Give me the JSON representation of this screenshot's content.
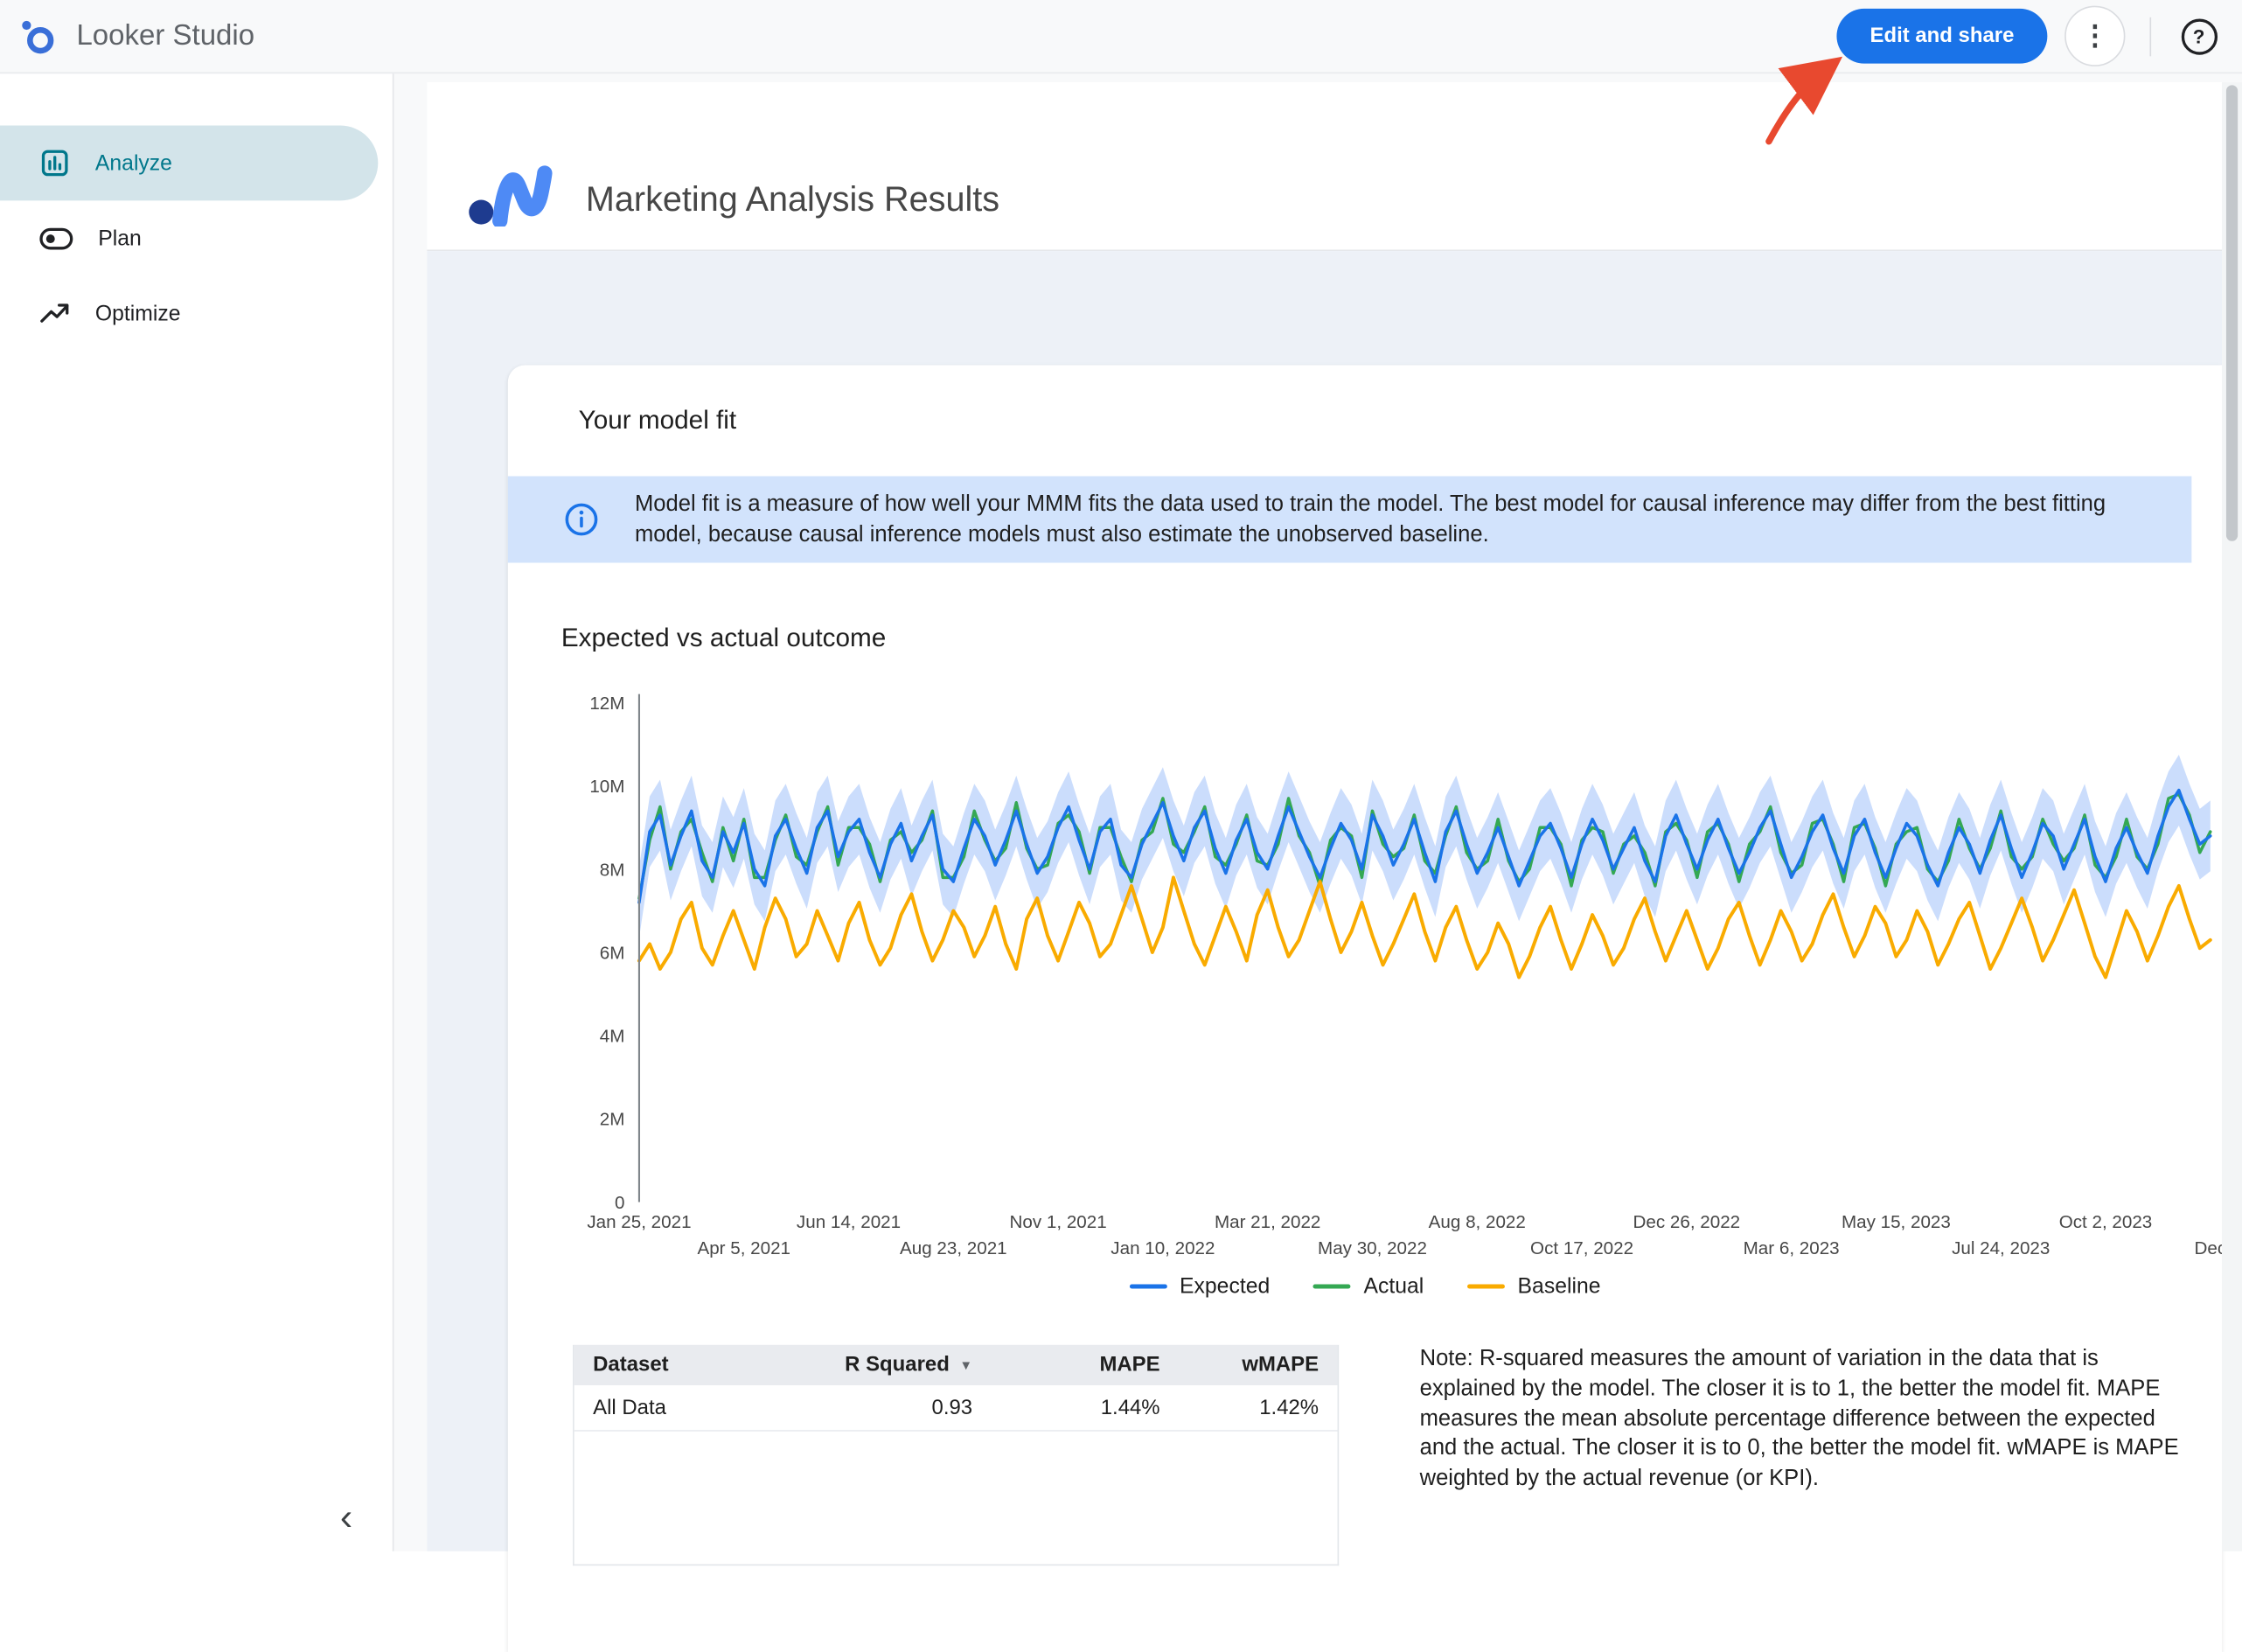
{
  "theme": {
    "accent": "#1a73e8",
    "selected_teal": "#00778b",
    "selected_bg": "#d3e4ea",
    "banner_bg": "#d2e3fc",
    "annotation": "#e8492f"
  },
  "topbar": {
    "app_title": "Looker Studio",
    "edit_share_label": "Edit and share",
    "more_options_glyph": "⋮",
    "help_glyph": "?"
  },
  "sidebar": {
    "items": [
      {
        "label": "Analyze",
        "selected": true
      },
      {
        "label": "Plan",
        "selected": false
      },
      {
        "label": "Optimize",
        "selected": false
      }
    ],
    "collapse_glyph": "‹"
  },
  "report": {
    "title": "Marketing Analysis Results",
    "section_title": "Your model fit",
    "info_banner": "Model fit is a measure of how well your MMM fits the data used to train the model. The best model for causal inference may differ from the best fitting model, because causal inference models must also estimate the unobserved baseline.",
    "note": "Note: R-squared measures the amount of variation in the data that is explained by the model. The closer it is to 1, the better the model fit. MAPE measures the mean absolute percentage difference between the expected and the actual. The closer it is to 0, the better the model fit. wMAPE is MAPE weighted by the actual revenue (or KPI).",
    "table": {
      "headers": [
        "Dataset",
        "R Squared",
        "MAPE",
        "wMAPE"
      ],
      "sort_column": "R Squared",
      "sort_glyph": "▼",
      "rows": [
        [
          "All Data",
          "0.93",
          "1.44%",
          "1.42%"
        ]
      ]
    }
  },
  "chart_data": {
    "type": "line",
    "title": "Expected vs actual outcome",
    "xlabel": "",
    "ylabel": "",
    "values_unit": "millions",
    "ylim_millions": [
      0,
      12
    ],
    "y_ticks": [
      "0",
      "2M",
      "4M",
      "6M",
      "8M",
      "10M",
      "12M"
    ],
    "x_ticks": [
      "Jan 25, 2021",
      "Apr 5, 2021",
      "Jun 14, 2021",
      "Aug 23, 2021",
      "Nov 1, 2021",
      "Jan 10, 2022",
      "Mar 21, 2022",
      "May 30, 2022",
      "Aug 8, 2022",
      "Oct 17, 2022",
      "Dec 26, 2022",
      "Mar 6, 2023",
      "May 15, 2023",
      "Jul 24, 2023",
      "Oct 2, 2023",
      "Dec"
    ],
    "x_tick_step_points": 10,
    "legend_position": "bottom",
    "grid": false,
    "uncertainty_band": {
      "around": "Expected",
      "halfwidth_millions": 0.85,
      "color": "#a8c7fa"
    },
    "series": [
      {
        "name": "Expected",
        "color": "#1a73e8",
        "values": [
          7.2,
          8.9,
          9.3,
          8.1,
          8.8,
          9.4,
          8.2,
          7.8,
          8.9,
          8.4,
          9.1,
          8.0,
          7.6,
          8.8,
          9.2,
          8.5,
          7.9,
          9.0,
          9.4,
          8.3,
          8.9,
          9.2,
          8.4,
          7.8,
          8.6,
          9.1,
          8.2,
          8.8,
          9.3,
          8.0,
          7.7,
          8.5,
          9.2,
          8.8,
          8.1,
          8.7,
          9.4,
          8.6,
          7.9,
          8.3,
          9.0,
          9.5,
          8.7,
          8.0,
          8.9,
          9.2,
          8.1,
          7.8,
          8.6,
          9.1,
          9.6,
          8.8,
          8.2,
          9.0,
          9.4,
          8.5,
          7.9,
          8.7,
          9.2,
          8.4,
          8.0,
          8.8,
          9.5,
          8.9,
          8.3,
          7.8,
          8.5,
          9.1,
          8.7,
          8.0,
          9.3,
          8.8,
          8.1,
          8.6,
          9.2,
          8.4,
          7.7,
          8.9,
          9.4,
          8.6,
          7.9,
          8.4,
          9.0,
          8.3,
          7.6,
          8.2,
          8.8,
          9.1,
          8.5,
          7.8,
          8.6,
          9.2,
          8.7,
          8.0,
          8.5,
          9.0,
          8.2,
          7.7,
          8.8,
          9.3,
          8.6,
          8.0,
          8.7,
          9.2,
          8.5,
          7.9,
          8.4,
          9.0,
          9.4,
          8.6,
          7.8,
          8.3,
          8.9,
          9.3,
          8.5,
          7.9,
          8.8,
          9.2,
          8.4,
          7.8,
          8.5,
          9.1,
          8.8,
          8.1,
          7.6,
          8.4,
          9.0,
          8.6,
          7.9,
          8.7,
          9.3,
          8.5,
          7.8,
          8.4,
          9.1,
          8.8,
          8.0,
          8.6,
          9.2,
          8.3,
          7.7,
          8.5,
          9.0,
          8.4,
          7.9,
          8.8,
          9.5,
          9.9,
          9.2,
          8.6,
          8.8
        ]
      },
      {
        "name": "Actual",
        "color": "#34a853",
        "values": [
          7.3,
          8.7,
          9.5,
          8.0,
          8.9,
          9.2,
          8.4,
          7.7,
          9.0,
          8.2,
          9.2,
          7.8,
          7.8,
          8.7,
          9.3,
          8.3,
          8.1,
          8.9,
          9.5,
          8.1,
          9.0,
          9.0,
          8.6,
          7.7,
          8.7,
          8.9,
          8.4,
          8.7,
          9.4,
          7.8,
          7.8,
          8.3,
          9.4,
          8.7,
          8.2,
          8.5,
          9.6,
          8.5,
          8.0,
          8.1,
          9.1,
          9.3,
          8.9,
          7.9,
          9.0,
          9.0,
          8.3,
          7.7,
          8.7,
          8.9,
          9.7,
          8.6,
          8.4,
          8.9,
          9.5,
          8.3,
          8.1,
          8.6,
          9.3,
          8.2,
          8.1,
          8.6,
          9.7,
          8.8,
          8.4,
          7.6,
          8.7,
          9.0,
          8.8,
          7.8,
          9.4,
          8.6,
          8.3,
          8.5,
          9.3,
          8.2,
          7.9,
          8.8,
          9.5,
          8.4,
          8.0,
          8.2,
          9.2,
          8.2,
          7.7,
          8.0,
          9.0,
          9.0,
          8.6,
          7.6,
          8.7,
          9.0,
          8.9,
          7.9,
          8.6,
          8.8,
          8.4,
          7.6,
          8.9,
          9.1,
          8.7,
          7.8,
          8.9,
          9.1,
          8.6,
          7.7,
          8.6,
          8.9,
          9.5,
          8.4,
          7.9,
          8.1,
          9.1,
          9.2,
          8.6,
          7.7,
          9.0,
          9.1,
          8.5,
          7.6,
          8.6,
          8.9,
          9.0,
          8.0,
          7.7,
          8.2,
          9.2,
          8.5,
          8.0,
          8.5,
          9.4,
          8.3,
          8.0,
          8.3,
          9.2,
          8.6,
          8.2,
          8.5,
          9.3,
          8.1,
          7.8,
          8.3,
          9.2,
          8.3,
          8.0,
          8.6,
          9.7,
          9.8,
          9.3,
          8.4,
          8.9
        ]
      },
      {
        "name": "Baseline",
        "color": "#f9ab00",
        "values": [
          5.8,
          6.2,
          5.6,
          6.0,
          6.8,
          7.2,
          6.1,
          5.7,
          6.4,
          7.0,
          6.3,
          5.6,
          6.6,
          7.3,
          6.8,
          5.9,
          6.2,
          7.0,
          6.4,
          5.8,
          6.7,
          7.2,
          6.3,
          5.7,
          6.1,
          6.9,
          7.4,
          6.5,
          5.8,
          6.3,
          7.0,
          6.6,
          5.9,
          6.4,
          7.1,
          6.2,
          5.6,
          6.8,
          7.3,
          6.4,
          5.8,
          6.5,
          7.2,
          6.7,
          5.9,
          6.2,
          6.9,
          7.6,
          6.8,
          6.0,
          6.6,
          7.8,
          7.0,
          6.2,
          5.7,
          6.4,
          7.1,
          6.5,
          5.8,
          6.9,
          7.5,
          6.6,
          5.9,
          6.3,
          7.0,
          7.7,
          6.8,
          6.0,
          6.5,
          7.2,
          6.4,
          5.7,
          6.2,
          6.8,
          7.4,
          6.5,
          5.8,
          6.6,
          7.1,
          6.3,
          5.6,
          6.0,
          6.7,
          6.2,
          5.4,
          5.9,
          6.6,
          7.1,
          6.3,
          5.6,
          6.2,
          6.9,
          6.4,
          5.7,
          6.1,
          6.8,
          7.3,
          6.5,
          5.8,
          6.4,
          7.0,
          6.3,
          5.6,
          6.1,
          6.8,
          7.2,
          6.4,
          5.7,
          6.3,
          7.0,
          6.5,
          5.8,
          6.2,
          6.9,
          7.4,
          6.6,
          5.9,
          6.4,
          7.1,
          6.7,
          5.9,
          6.3,
          7.0,
          6.5,
          5.7,
          6.2,
          6.8,
          7.2,
          6.4,
          5.6,
          6.1,
          6.7,
          7.3,
          6.6,
          5.8,
          6.3,
          6.9,
          7.5,
          6.7,
          5.9,
          5.4,
          6.2,
          7.0,
          6.5,
          5.8,
          6.4,
          7.1,
          7.6,
          6.8,
          6.1,
          6.3
        ]
      }
    ]
  }
}
